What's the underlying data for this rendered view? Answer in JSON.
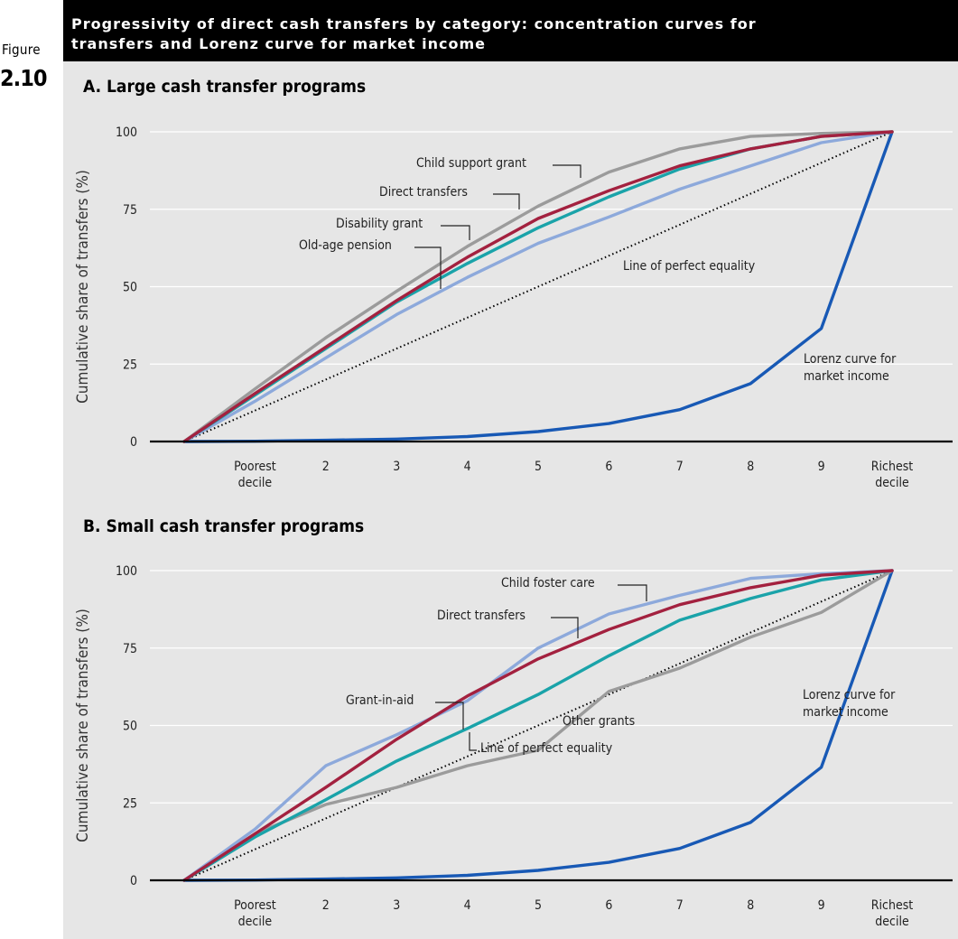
{
  "figure": {
    "label_word": "Figure",
    "number": "2.10",
    "title_line1": "Progressivity of direct cash transfers by category: concentration curves for",
    "title_line2": "transfers and Lorenz curve for market income"
  },
  "colors": {
    "panel_bg": "#e6e6e6",
    "gray": "#9b9b9b",
    "maroon": "#a3213f",
    "teal": "#1aa3a9",
    "lightblue": "#8da9db",
    "blue": "#1859b5",
    "equality": "#000000"
  },
  "chart_data": [
    {
      "type": "line",
      "title": "A. Large cash transfer programs",
      "ylabel": "Cumulative share of transfers (%)",
      "xlabel": "",
      "x": [
        0,
        1,
        2,
        3,
        4,
        5,
        6,
        7,
        8,
        9,
        10
      ],
      "xtick_labels": [
        {
          "x": 1,
          "lines": [
            "Poorest",
            "decile"
          ]
        },
        {
          "x": 2,
          "lines": [
            "2"
          ]
        },
        {
          "x": 3,
          "lines": [
            "3"
          ]
        },
        {
          "x": 4,
          "lines": [
            "4"
          ]
        },
        {
          "x": 5,
          "lines": [
            "5"
          ]
        },
        {
          "x": 6,
          "lines": [
            "6"
          ]
        },
        {
          "x": 7,
          "lines": [
            "7"
          ]
        },
        {
          "x": 8,
          "lines": [
            "8"
          ]
        },
        {
          "x": 9,
          "lines": [
            "9"
          ]
        },
        {
          "x": 10,
          "lines": [
            "Richest",
            "decile"
          ]
        }
      ],
      "yticks": [
        0,
        25,
        50,
        75,
        100
      ],
      "xlim": [
        0,
        10
      ],
      "ylim": [
        0,
        100
      ],
      "series": [
        {
          "name": "Line of perfect equality",
          "color_key": "equality",
          "dashed": true,
          "values": [
            0,
            10,
            20,
            30,
            40,
            50,
            60,
            70,
            80,
            90,
            100
          ]
        },
        {
          "name": "Lorenz curve for market income",
          "color_key": "blue",
          "values": [
            0,
            0.1,
            0.4,
            0.8,
            1.6,
            3.2,
            5.8,
            10.3,
            18.7,
            36.5,
            100
          ]
        },
        {
          "name": "Old-age pension",
          "color_key": "lightblue",
          "values": [
            0,
            13,
            27,
            41,
            53,
            64,
            72.5,
            81.5,
            89,
            96.5,
            100
          ]
        },
        {
          "name": "Disability grant",
          "color_key": "teal",
          "values": [
            0,
            15,
            30,
            45,
            57.5,
            69,
            79,
            88,
            94.5,
            98.5,
            100
          ]
        },
        {
          "name": "Child support grant",
          "color_key": "gray",
          "values": [
            0,
            17,
            33.5,
            48.5,
            63,
            76,
            87,
            94.5,
            98.5,
            99.5,
            100
          ]
        },
        {
          "name": "Direct transfers",
          "color_key": "maroon",
          "values": [
            0,
            15.5,
            30.5,
            45.5,
            59.5,
            72,
            81,
            89,
            94.5,
            98.5,
            100
          ]
        }
      ],
      "annotations": [
        {
          "text": "Child support grant",
          "lines": [
            "Child support grant"
          ]
        },
        {
          "text": "Direct transfers",
          "lines": [
            "Direct transfers"
          ]
        },
        {
          "text": "Disability grant",
          "lines": [
            "Disability grant"
          ]
        },
        {
          "text": "Old-age pension",
          "lines": [
            "Old-age pension"
          ]
        },
        {
          "text": "Line of perfect equality",
          "lines": [
            "Line of perfect equality"
          ]
        },
        {
          "text": "Lorenz curve for market income",
          "lines": [
            "Lorenz curve for",
            "market income"
          ]
        }
      ]
    },
    {
      "type": "line",
      "title": "B. Small cash transfer programs",
      "ylabel": "Cumulative share of transfers (%)",
      "xlabel": "",
      "x": [
        0,
        1,
        2,
        3,
        4,
        5,
        6,
        7,
        8,
        9,
        10
      ],
      "xtick_labels": [
        {
          "x": 1,
          "lines": [
            "Poorest",
            "decile"
          ]
        },
        {
          "x": 2,
          "lines": [
            "2"
          ]
        },
        {
          "x": 3,
          "lines": [
            "3"
          ]
        },
        {
          "x": 4,
          "lines": [
            "4"
          ]
        },
        {
          "x": 5,
          "lines": [
            "5"
          ]
        },
        {
          "x": 6,
          "lines": [
            "6"
          ]
        },
        {
          "x": 7,
          "lines": [
            "7"
          ]
        },
        {
          "x": 8,
          "lines": [
            "8"
          ]
        },
        {
          "x": 9,
          "lines": [
            "9"
          ]
        },
        {
          "x": 10,
          "lines": [
            "Richest",
            "decile"
          ]
        }
      ],
      "yticks": [
        0,
        25,
        50,
        75,
        100
      ],
      "xlim": [
        0,
        10
      ],
      "ylim": [
        0,
        100
      ],
      "series": [
        {
          "name": "Line of perfect equality",
          "color_key": "equality",
          "dashed": true,
          "values": [
            0,
            10,
            20,
            30,
            40,
            50,
            60,
            70,
            80,
            90,
            100
          ]
        },
        {
          "name": "Lorenz curve for market income",
          "color_key": "blue",
          "values": [
            0,
            0.1,
            0.4,
            0.8,
            1.6,
            3.2,
            5.8,
            10.3,
            18.7,
            36.5,
            100
          ]
        },
        {
          "name": "Other grants",
          "color_key": "gray",
          "values": [
            0,
            15,
            24.5,
            30,
            37,
            42,
            61,
            68.5,
            78.5,
            86.5,
            100
          ]
        },
        {
          "name": "Grant-in-aid",
          "color_key": "teal",
          "values": [
            0,
            14,
            26,
            38.5,
            49,
            60,
            72.5,
            84,
            91,
            97,
            100
          ]
        },
        {
          "name": "Child foster care",
          "color_key": "lightblue",
          "values": [
            0,
            16.5,
            37,
            47,
            58,
            75,
            86,
            92,
            97.5,
            99,
            100
          ]
        },
        {
          "name": "Direct transfers",
          "color_key": "maroon",
          "values": [
            0,
            15,
            30,
            45.5,
            59.5,
            71.5,
            81,
            89,
            94.5,
            98.5,
            100
          ]
        }
      ],
      "annotations": [
        {
          "text": "Child foster care",
          "lines": [
            "Child foster care"
          ]
        },
        {
          "text": "Direct transfers",
          "lines": [
            "Direct transfers"
          ]
        },
        {
          "text": "Grant-in-aid",
          "lines": [
            "Grant-in-aid"
          ]
        },
        {
          "text": "Other grants",
          "lines": [
            "Other grants"
          ]
        },
        {
          "text": "Line of perfect equality",
          "lines": [
            "Line of perfect equality"
          ]
        },
        {
          "text": "Lorenz curve for market income",
          "lines": [
            "Lorenz curve for",
            "market income"
          ]
        }
      ]
    }
  ]
}
